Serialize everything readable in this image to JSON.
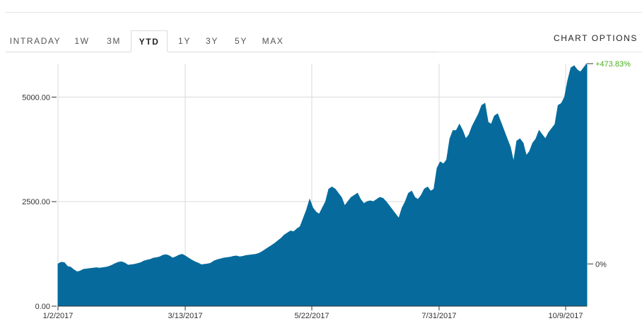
{
  "tabs": [
    {
      "label": "INTRADAY"
    },
    {
      "label": "1W"
    },
    {
      "label": "3M"
    },
    {
      "label": "YTD",
      "active": true
    },
    {
      "label": "1Y"
    },
    {
      "label": "3Y"
    },
    {
      "label": "5Y"
    },
    {
      "label": "MAX"
    }
  ],
  "chart_options_label": "CHART OPTIONS",
  "colors": {
    "area": "#066b9c",
    "positive": "#4caf1f",
    "grid": "#d9d9d9"
  },
  "chart_data": {
    "type": "area",
    "ylim": [
      0,
      5800
    ],
    "yticks": [
      {
        "value": 0,
        "label": "0.00"
      },
      {
        "value": 2500,
        "label": "2500.00"
      },
      {
        "value": 5000,
        "label": "5000.00"
      }
    ],
    "xticks": [
      "1/2/2017",
      "3/13/2017",
      "5/22/2017",
      "7/31/2017",
      "10/9/2017"
    ],
    "x_start": "1/2/2017",
    "x_end": "10/27/2017",
    "right_axis": [
      {
        "label": "+473.83%",
        "value": 5800,
        "color": "positive"
      },
      {
        "label": "0%",
        "value": 1010,
        "color": "neutral"
      }
    ],
    "values": [
      1010,
      1050,
      1040,
      950,
      930,
      870,
      820,
      840,
      880,
      890,
      900,
      910,
      920,
      910,
      920,
      930,
      950,
      980,
      1020,
      1050,
      1060,
      1030,
      980,
      990,
      1000,
      1020,
      1040,
      1080,
      1100,
      1120,
      1150,
      1160,
      1180,
      1220,
      1230,
      1200,
      1150,
      1180,
      1220,
      1240,
      1200,
      1150,
      1100,
      1060,
      1030,
      990,
      1000,
      1010,
      1030,
      1080,
      1110,
      1130,
      1150,
      1160,
      1170,
      1190,
      1200,
      1180,
      1190,
      1210,
      1220,
      1230,
      1240,
      1260,
      1300,
      1350,
      1400,
      1450,
      1500,
      1560,
      1620,
      1700,
      1750,
      1800,
      1780,
      1850,
      1900,
      2100,
      2300,
      2550,
      2350,
      2250,
      2200,
      2350,
      2500,
      2800,
      2850,
      2800,
      2700,
      2600,
      2400,
      2500,
      2600,
      2650,
      2700,
      2550,
      2450,
      2500,
      2520,
      2500,
      2550,
      2600,
      2580,
      2500,
      2400,
      2300,
      2200,
      2100,
      2350,
      2500,
      2700,
      2750,
      2600,
      2550,
      2650,
      2800,
      2850,
      2750,
      2800,
      3300,
      3450,
      3400,
      3500,
      4000,
      4200,
      4200,
      4350,
      4200,
      4000,
      4100,
      4300,
      4450,
      4600,
      4800,
      4850,
      4400,
      4350,
      4550,
      4600,
      4400,
      4200,
      4000,
      3800,
      3450,
      3950,
      4000,
      3900,
      3600,
      3700,
      3900,
      4000,
      4200,
      4100,
      4000,
      4150,
      4250,
      4350,
      4800,
      4850,
      5000,
      5400,
      5700,
      5750,
      5650,
      5600,
      5700,
      5800
    ]
  }
}
